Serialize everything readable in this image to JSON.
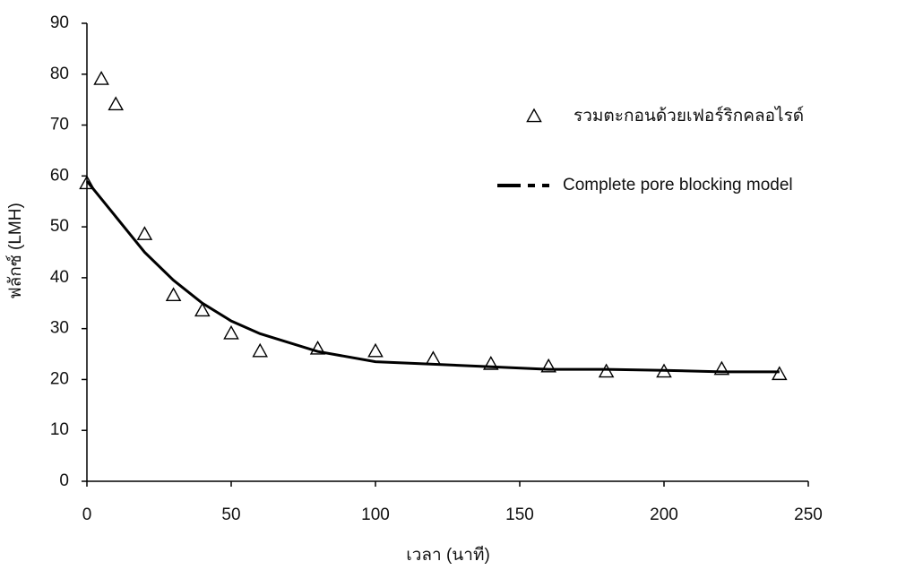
{
  "chart_data": {
    "type": "scatter",
    "x_label": "เวลา (นาที)",
    "y_label": "ฟลักซ์ (LMH)",
    "xlim": [
      0,
      250
    ],
    "xticks": [
      0,
      50,
      100,
      150,
      200,
      250
    ],
    "ylim": [
      0,
      90
    ],
    "yticks": [
      0,
      10,
      20,
      30,
      40,
      50,
      60,
      70,
      80,
      90
    ],
    "series": [
      {
        "name": "รวมตะกอนด้วยเฟอร์ริกคลอไรด์",
        "type": "scatter",
        "marker": "triangle",
        "color": "#000000",
        "x": [
          0,
          5,
          10,
          20,
          30,
          40,
          50,
          60,
          80,
          100,
          120,
          140,
          160,
          180,
          200,
          220,
          240
        ],
        "values": [
          58.5,
          79,
          74,
          48.5,
          36.5,
          33.5,
          29,
          25.5,
          26,
          25.5,
          24,
          23,
          22.5,
          21.5,
          21.5,
          22,
          21
        ]
      },
      {
        "name": "Complete pore blocking model",
        "type": "line",
        "color": "#000000",
        "x": [
          0,
          10,
          20,
          30,
          40,
          50,
          60,
          80,
          100,
          120,
          140,
          160,
          180,
          200,
          220,
          240
        ],
        "values": [
          59,
          52,
          45,
          39.5,
          35,
          31.5,
          29,
          25.5,
          23.5,
          23,
          22.5,
          22,
          22,
          21.8,
          21.5,
          21.5
        ]
      }
    ]
  }
}
